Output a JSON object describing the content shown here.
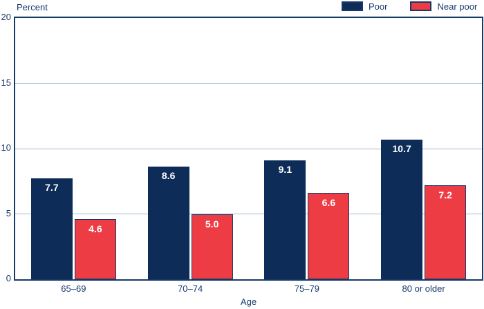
{
  "chart_data": {
    "type": "bar",
    "categories": [
      "65–69",
      "70–74",
      "75–79",
      "80 or older"
    ],
    "series": [
      {
        "name": "Poor",
        "color": "#0e2c58",
        "values": [
          7.7,
          8.6,
          9.1,
          10.7
        ]
      },
      {
        "name": "Near poor",
        "color": "#ee3c44",
        "values": [
          4.6,
          5.0,
          6.6,
          7.2
        ]
      }
    ],
    "title": "",
    "ylabel": "Percent",
    "xlabel": "Age",
    "ylim": [
      0,
      20
    ],
    "yticks": [
      0,
      5,
      10,
      15,
      20
    ],
    "grid": true,
    "legend_position": "top-right",
    "value_labels": true
  },
  "colors": {
    "navy": "#0e2c58",
    "red": "#ee3c44",
    "border": "#16396b",
    "gridline": "#a3b8cc",
    "text": "#16396b",
    "bar_label_text": "#ffffff"
  }
}
